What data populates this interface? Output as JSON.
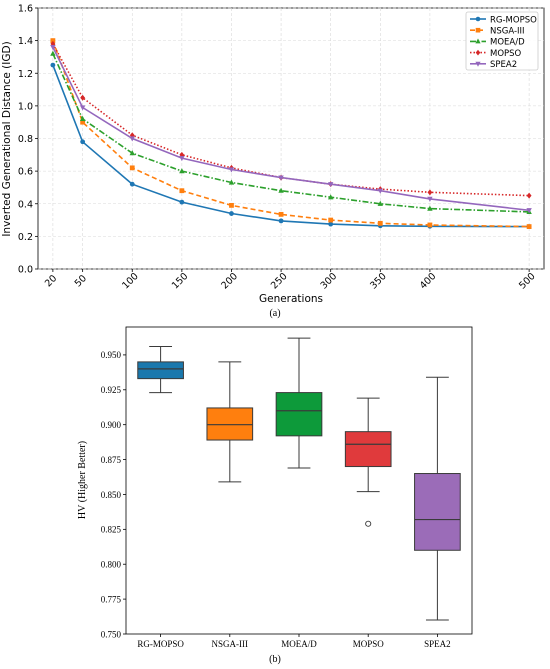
{
  "figure": {
    "caption_a": "(a)",
    "caption_b": "(b)"
  },
  "chart_data": [
    {
      "type": "line",
      "title": "",
      "xlabel": "Generations",
      "ylabel": "Inverted Generational Distance (IGD)",
      "x": [
        20,
        50,
        100,
        150,
        200,
        250,
        300,
        350,
        400,
        500
      ],
      "xticks": [
        "20",
        "50",
        "100",
        "150",
        "200",
        "250",
        "300",
        "350",
        "400",
        "500"
      ],
      "ylim": [
        0.0,
        1.6
      ],
      "yticks": [
        "0.0",
        "0.2",
        "0.4",
        "0.6",
        "0.8",
        "1.0",
        "1.2",
        "1.4",
        "1.6"
      ],
      "grid": true,
      "legend_position": "top-right",
      "series": [
        {
          "name": "RG-MOPSO",
          "color": "#1f77b4",
          "linestyle": "solid",
          "marker": "circle",
          "values": [
            1.25,
            0.78,
            0.52,
            0.41,
            0.34,
            0.295,
            0.275,
            0.265,
            0.262,
            0.26
          ]
        },
        {
          "name": "NSGA-III",
          "color": "#ff7f0e",
          "linestyle": "dashed",
          "marker": "square",
          "values": [
            1.4,
            0.9,
            0.62,
            0.48,
            0.39,
            0.335,
            0.3,
            0.28,
            0.27,
            0.26
          ]
        },
        {
          "name": "MOEA/D",
          "color": "#2ca02c",
          "linestyle": "dashdot",
          "marker": "triangle-up",
          "values": [
            1.32,
            0.92,
            0.71,
            0.6,
            0.53,
            0.48,
            0.44,
            0.4,
            0.37,
            0.35
          ]
        },
        {
          "name": "MOPSO",
          "color": "#d62728",
          "linestyle": "dotted",
          "marker": "diamond",
          "values": [
            1.38,
            1.05,
            0.82,
            0.7,
            0.62,
            0.56,
            0.52,
            0.49,
            0.47,
            0.45
          ]
        },
        {
          "name": "SPEA2",
          "color": "#9467bd",
          "linestyle": "solid",
          "marker": "triangle-down",
          "values": [
            1.36,
            0.99,
            0.8,
            0.68,
            0.61,
            0.56,
            0.52,
            0.48,
            0.43,
            0.36
          ]
        }
      ]
    },
    {
      "type": "box",
      "title": "",
      "xlabel": "",
      "ylabel": "HV (Higher Better)",
      "ylim": [
        0.75,
        0.97
      ],
      "yticks": [
        "0.750",
        "0.775",
        "0.800",
        "0.825",
        "0.850",
        "0.875",
        "0.900",
        "0.925",
        "0.950"
      ],
      "categories": [
        "RG-MOPSO",
        "NSGA-III",
        "MOEA/D",
        "MOPSO",
        "SPEA2"
      ],
      "boxes": [
        {
          "name": "RG-MOPSO",
          "color": "#1a78ad",
          "whisker_low": 0.923,
          "q1": 0.933,
          "median": 0.94,
          "q3": 0.945,
          "whisker_high": 0.956,
          "outliers": []
        },
        {
          "name": "NSGA-III",
          "color": "#ff7f0e",
          "whisker_low": 0.859,
          "q1": 0.889,
          "median": 0.9,
          "q3": 0.912,
          "whisker_high": 0.945,
          "outliers": []
        },
        {
          "name": "MOEA/D",
          "color": "#0d9a3a",
          "whisker_low": 0.869,
          "q1": 0.892,
          "median": 0.91,
          "q3": 0.923,
          "whisker_high": 0.962,
          "outliers": []
        },
        {
          "name": "MOPSO",
          "color": "#e03a3c",
          "whisker_low": 0.852,
          "q1": 0.87,
          "median": 0.886,
          "q3": 0.895,
          "whisker_high": 0.919,
          "outliers": [
            0.829
          ]
        },
        {
          "name": "SPEA2",
          "color": "#9b6cb8",
          "whisker_low": 0.76,
          "q1": 0.81,
          "median": 0.832,
          "q3": 0.865,
          "whisker_high": 0.934,
          "outliers": []
        }
      ]
    }
  ]
}
